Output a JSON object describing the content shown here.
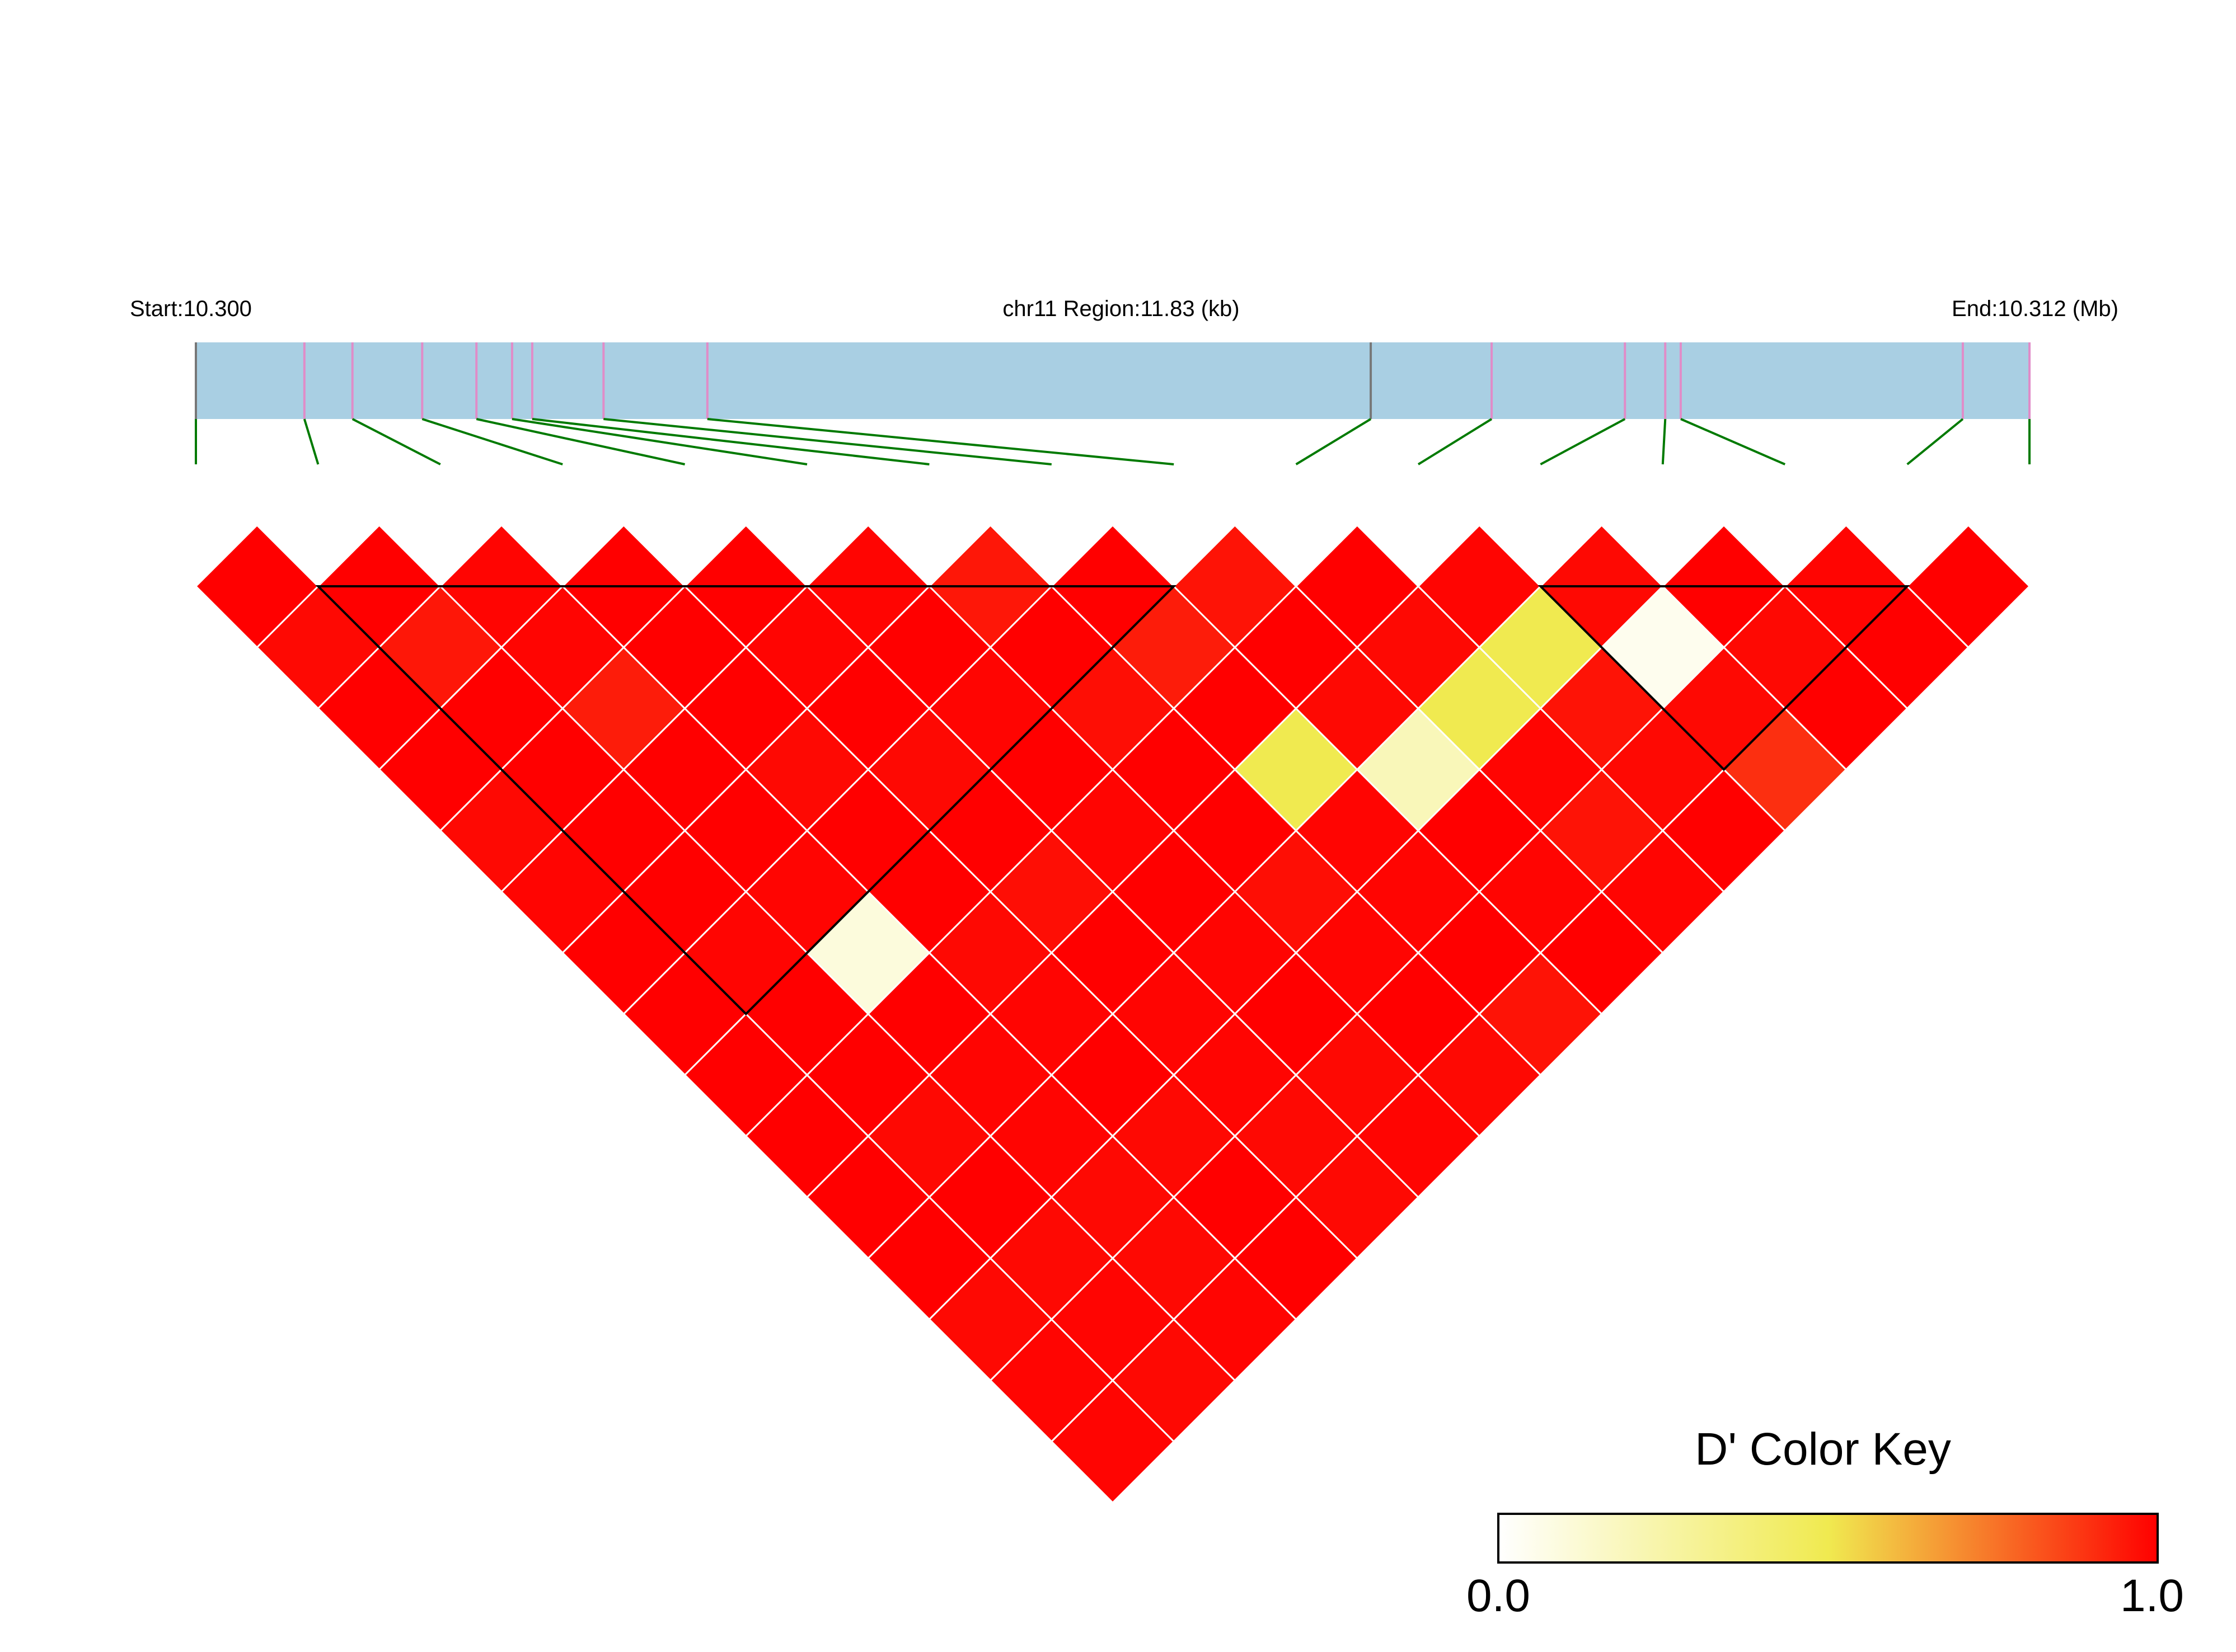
{
  "chart_data": {
    "type": "heatmap",
    "title": "",
    "region": {
      "start_label": "Start:10.300",
      "center_label": "chr11 Region:11.83 (kb)",
      "end_label": "End:10.312 (Mb)"
    },
    "snp_positions_kb": [
      0.0,
      0.7,
      1.01,
      1.46,
      1.81,
      2.04,
      2.17,
      2.63,
      3.3,
      7.58,
      8.36,
      9.22,
      9.48,
      9.58,
      11.4,
      11.83
    ],
    "ld_matrix_dprime": [
      [
        1.0,
        0.98,
        1.0,
        1.0,
        0.98,
        0.99,
        1.0,
        1.0,
        1.0,
        1.0,
        1.0,
        1.0,
        0.98,
        0.99,
        0.99
      ],
      [
        1.0,
        0.95,
        1.0,
        1.0,
        1.0,
        1.0,
        0.99,
        1.0,
        1.0,
        0.98,
        1.0,
        0.98,
        0.99,
        0.98
      ],
      [
        0.99,
        0.99,
        0.94,
        1.0,
        1.0,
        0.99,
        0.1,
        1.0,
        0.99,
        0.99,
        0.98,
        0.98,
        0.99
      ],
      [
        1.0,
        1.0,
        1.0,
        0.98,
        1.0,
        1.0,
        0.98,
        0.99,
        1.0,
        0.98,
        1.0,
        1.0
      ],
      [
        1.0,
        0.99,
        1.0,
        0.98,
        1.0,
        0.97,
        1.0,
        0.99,
        0.99,
        0.98,
        0.98
      ],
      [
        0.99,
        1.0,
        0.99,
        1.0,
        0.99,
        1.0,
        0.99,
        1.0,
        0.98,
        0.99
      ],
      [
        0.95,
        1.0,
        0.97,
        1.0,
        1.0,
        0.97,
        0.99,
        1.0,
        0.98
      ],
      [
        1.0,
        0.94,
        1.0,
        0.5,
        0.99,
        0.99,
        1.0,
        0.96
      ],
      [
        0.96,
        1.0,
        0.98,
        0.2,
        1.0,
        0.99,
        1.0
      ],
      [
        1.0,
        0.98,
        0.5,
        0.99,
        0.96,
        0.99
      ],
      [
        0.99,
        0.5,
        0.96,
        0.98,
        1.0
      ],
      [
        0.98,
        0.05,
        0.98,
        0.9
      ],
      [
        1.0,
        0.98,
        1.0
      ],
      [
        0.99,
        1.0
      ],
      [
        1.0
      ]
    ],
    "blocks": [
      [
        1,
        8
      ],
      [
        11,
        14
      ]
    ],
    "color_key": {
      "title": "D' Color Key",
      "min_label": "0.0",
      "max_label": "1.0",
      "colors": [
        "#ffffff",
        "#f0ea50",
        "#ff0000"
      ]
    }
  },
  "colors": {
    "track": "#a9cfe3",
    "snp_tick": "#e08cc8",
    "snp_tick_boundary": "#777777",
    "connector": "#007a00",
    "cell_border": "#ffffff",
    "block_outline": "#000000"
  }
}
